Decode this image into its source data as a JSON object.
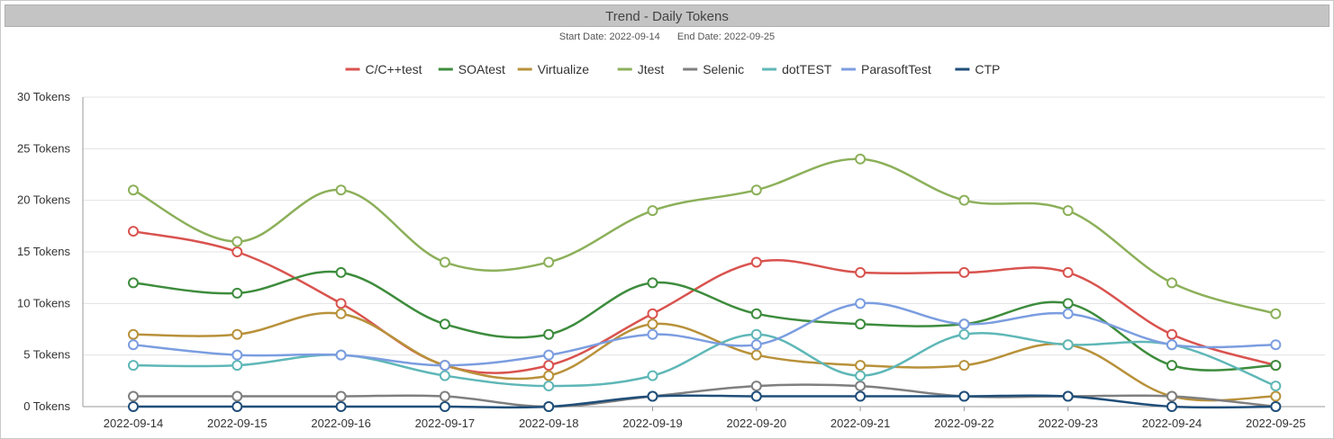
{
  "header": {
    "title": "Trend - Daily Tokens",
    "start_date_label": "Start Date: 2022-09-14",
    "end_date_label": "End Date: 2022-09-25"
  },
  "chart_data": {
    "type": "line",
    "title": "Trend - Daily Tokens",
    "subtitle": "Start Date: 2022-09-14    End Date: 2022-09-25",
    "xlabel": "",
    "ylabel": "",
    "y_unit_suffix": " Tokens",
    "ylim": [
      0,
      30
    ],
    "yticks": [
      0,
      5,
      10,
      15,
      20,
      25,
      30
    ],
    "grid": true,
    "legend_position": "top",
    "smooth": true,
    "categories": [
      "2022-09-14",
      "2022-09-15",
      "2022-09-16",
      "2022-09-17",
      "2022-09-18",
      "2022-09-19",
      "2022-09-20",
      "2022-09-21",
      "2022-09-22",
      "2022-09-23",
      "2022-09-24",
      "2022-09-25"
    ],
    "series": [
      {
        "name": "C/C++test",
        "color": "#d9534f",
        "values": [
          17,
          15,
          10,
          4,
          4,
          9,
          14,
          13,
          13,
          13,
          7,
          4
        ]
      },
      {
        "name": "SOAtest",
        "color": "#3d8c3d",
        "values": [
          12,
          11,
          13,
          8,
          7,
          12,
          9,
          8,
          8,
          10,
          4,
          4
        ]
      },
      {
        "name": "Virtualize",
        "color": "#b8913a",
        "values": [
          7,
          7,
          9,
          4,
          3,
          8,
          5,
          4,
          4,
          6,
          1,
          1
        ]
      },
      {
        "name": "Jtest",
        "color": "#8cb05a",
        "values": [
          21,
          16,
          21,
          14,
          14,
          19,
          21,
          24,
          20,
          19,
          12,
          9
        ]
      },
      {
        "name": "Selenic",
        "color": "#7f7f7f",
        "values": [
          1,
          1,
          1,
          1,
          0,
          1,
          2,
          2,
          1,
          1,
          1,
          0
        ]
      },
      {
        "name": "dotTEST",
        "color": "#5fb7b7",
        "values": [
          4,
          4,
          5,
          3,
          2,
          3,
          7,
          3,
          7,
          6,
          6,
          2
        ]
      },
      {
        "name": "ParasoftTest",
        "color": "#7b9de0",
        "values": [
          6,
          5,
          5,
          4,
          5,
          7,
          6,
          10,
          8,
          9,
          6,
          6
        ]
      },
      {
        "name": "CTP",
        "color": "#1f4e79",
        "values": [
          0,
          0,
          0,
          0,
          0,
          1,
          1,
          1,
          1,
          1,
          0,
          0
        ]
      }
    ]
  }
}
